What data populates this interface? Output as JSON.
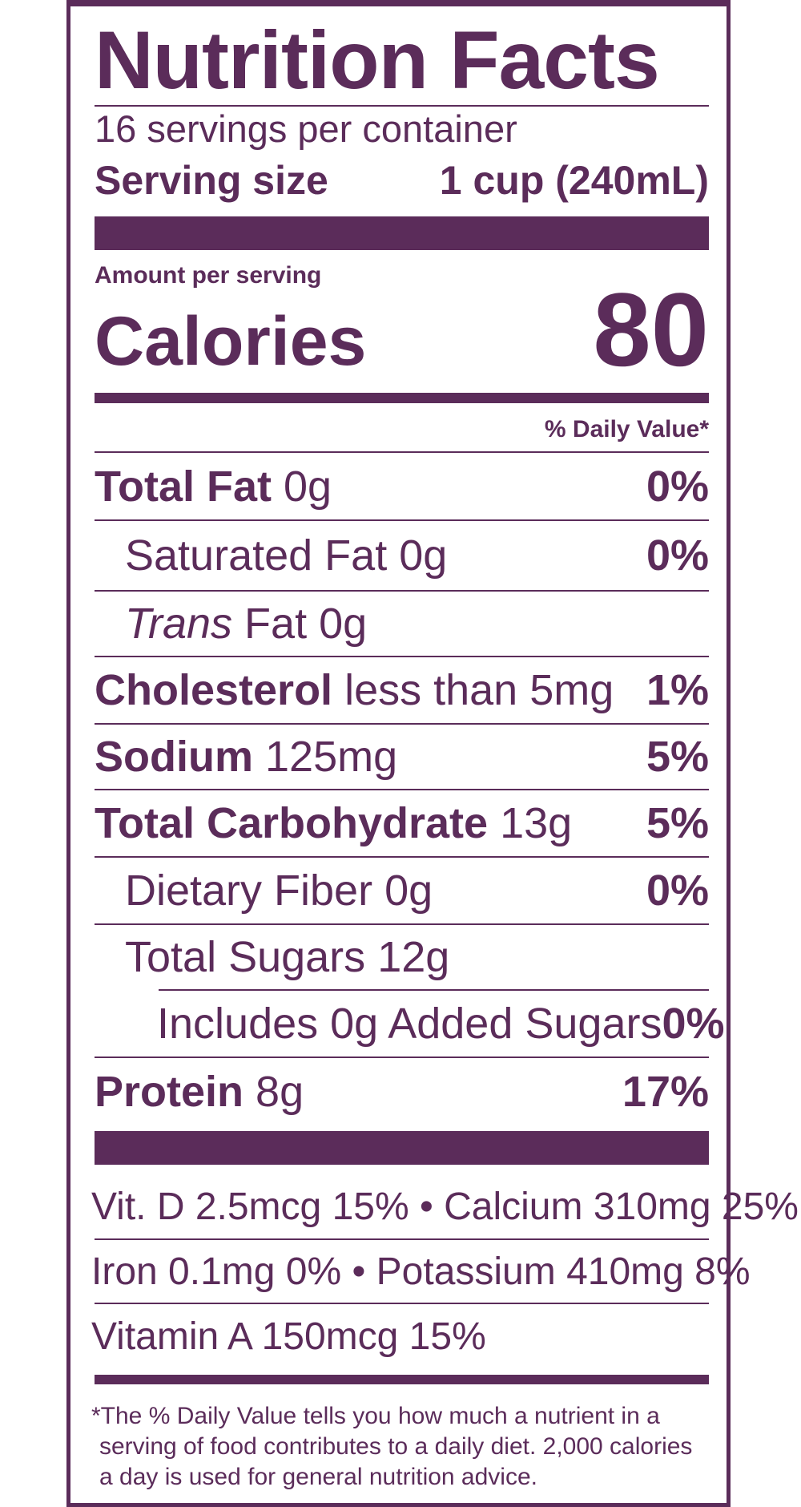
{
  "title": "Nutrition Facts",
  "servings_per_container": "16 servings per container",
  "serving_size": {
    "label": "Serving size",
    "value": "1 cup (240mL)"
  },
  "amount_per_serving": "Amount per serving",
  "calories": {
    "label": "Calories",
    "value": "80"
  },
  "daily_value_header": "% Daily Value*",
  "nutrients": [
    {
      "name": "Total Fat",
      "amount": "0g",
      "dv": "0%"
    },
    {
      "name": "Saturated Fat",
      "amount": "0g",
      "dv": "0%"
    },
    {
      "name": "Trans",
      "amount": "Fat 0g",
      "dv": ""
    },
    {
      "name": "Cholesterol",
      "amount": "less than 5mg",
      "dv": "1%"
    },
    {
      "name": "Sodium",
      "amount": "125mg",
      "dv": "5%"
    },
    {
      "name": "Total Carbohydrate",
      "amount": "13g",
      "dv": "5%"
    },
    {
      "name": "Dietary Fiber",
      "amount": "0g",
      "dv": "0%"
    },
    {
      "name": "Total Sugars",
      "amount": "12g",
      "dv": ""
    },
    {
      "name": "Includes 0g Added Sugars",
      "amount": "",
      "dv": "0%"
    },
    {
      "name": "Protein",
      "amount": "8g",
      "dv": "17%"
    }
  ],
  "vitamins": [
    "Vit. D 2.5mcg 15% • Calcium 310mg 25%",
    "Iron 0.1mg 0% • Potassium 410mg 8%",
    "Vitamin A 150mcg 15%"
  ],
  "footnote": [
    "*The % Daily Value tells you how much a nutrient in a",
    "serving of food contributes to a daily diet. 2,000 calories",
    "a day is used for general nutrition advice."
  ],
  "colors": {
    "ink": "#5b2c5a",
    "background": "#ffffff"
  }
}
